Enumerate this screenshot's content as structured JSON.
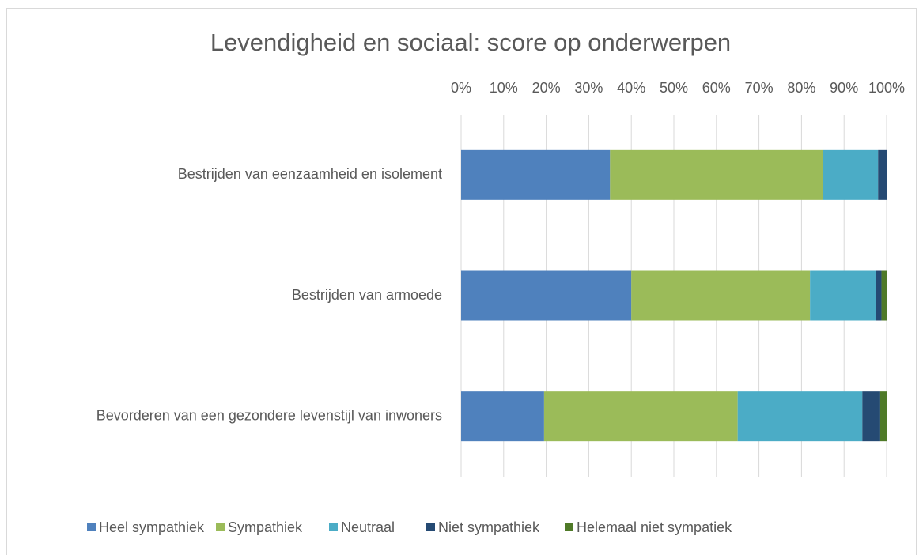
{
  "chart_data": {
    "type": "stacked_barh",
    "title": "Levendigheid en sociaal: score op onderwerpen",
    "categories": [
      "Bestrijden van eenzaamheid en isolement",
      "Bestrijden van armoede",
      "Bevorderen van een gezondere levenstijl van inwoners"
    ],
    "series": [
      {
        "name": "Heel sympathiek",
        "color": "#4f81bd",
        "values": [
          35,
          40,
          19.5
        ]
      },
      {
        "name": "Sympathiek",
        "color": "#9bbb59",
        "values": [
          50,
          42,
          45.5
        ]
      },
      {
        "name": "Neutraal",
        "color": "#4bacc6",
        "values": [
          13,
          15.5,
          29.3
        ]
      },
      {
        "name": "Niet sympathiek",
        "color": "#254a73",
        "values": [
          2,
          1.3,
          4.2
        ]
      },
      {
        "name": "Helemaal niet sympatiek",
        "color": "#4f7a28",
        "values": [
          0,
          1.2,
          1.5
        ]
      }
    ],
    "xlim": [
      0,
      100
    ],
    "xticks": [
      {
        "value": 0,
        "label": "0%"
      },
      {
        "value": 10,
        "label": "10%"
      },
      {
        "value": 20,
        "label": "20%"
      },
      {
        "value": 30,
        "label": "30%"
      },
      {
        "value": 40,
        "label": "40%"
      },
      {
        "value": 50,
        "label": "50%"
      },
      {
        "value": 60,
        "label": "60%"
      },
      {
        "value": 70,
        "label": "70%"
      },
      {
        "value": 80,
        "label": "80%"
      },
      {
        "value": 90,
        "label": "90%"
      },
      {
        "value": 100,
        "label": "100%"
      }
    ],
    "grid": true,
    "legend": "bottom"
  }
}
